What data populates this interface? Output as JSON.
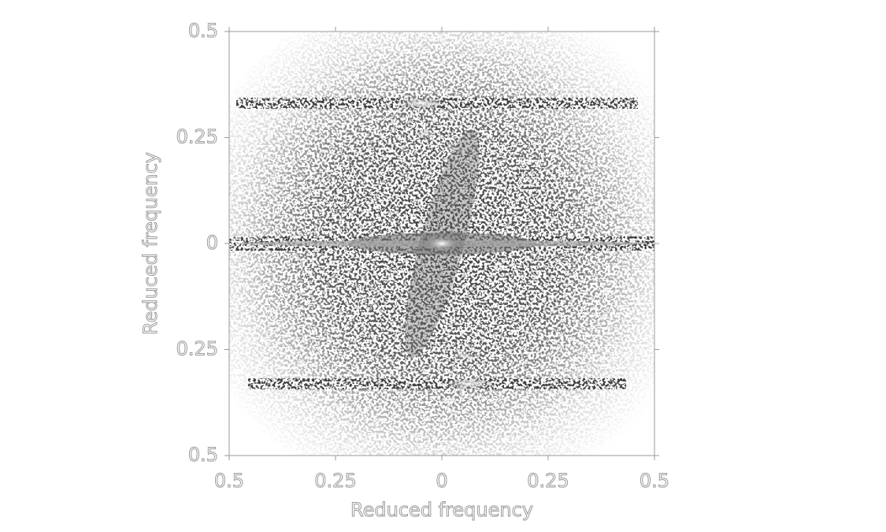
{
  "chart_data": {
    "type": "heatmap",
    "xlabel": "Reduced frequency",
    "ylabel": "Reduced frequency",
    "xlim": [
      -0.5,
      0.5
    ],
    "ylim": [
      -0.5,
      0.5
    ],
    "xticks": [
      {
        "value": -0.5,
        "label": "0.5"
      },
      {
        "value": -0.25,
        "label": "0.25"
      },
      0,
      0.25,
      0.5
    ],
    "yticks": [
      {
        "value": -0.5,
        "label": "0.5"
      },
      {
        "value": -0.25,
        "label": "0.25"
      },
      0,
      0.25,
      0.5
    ]
  }
}
